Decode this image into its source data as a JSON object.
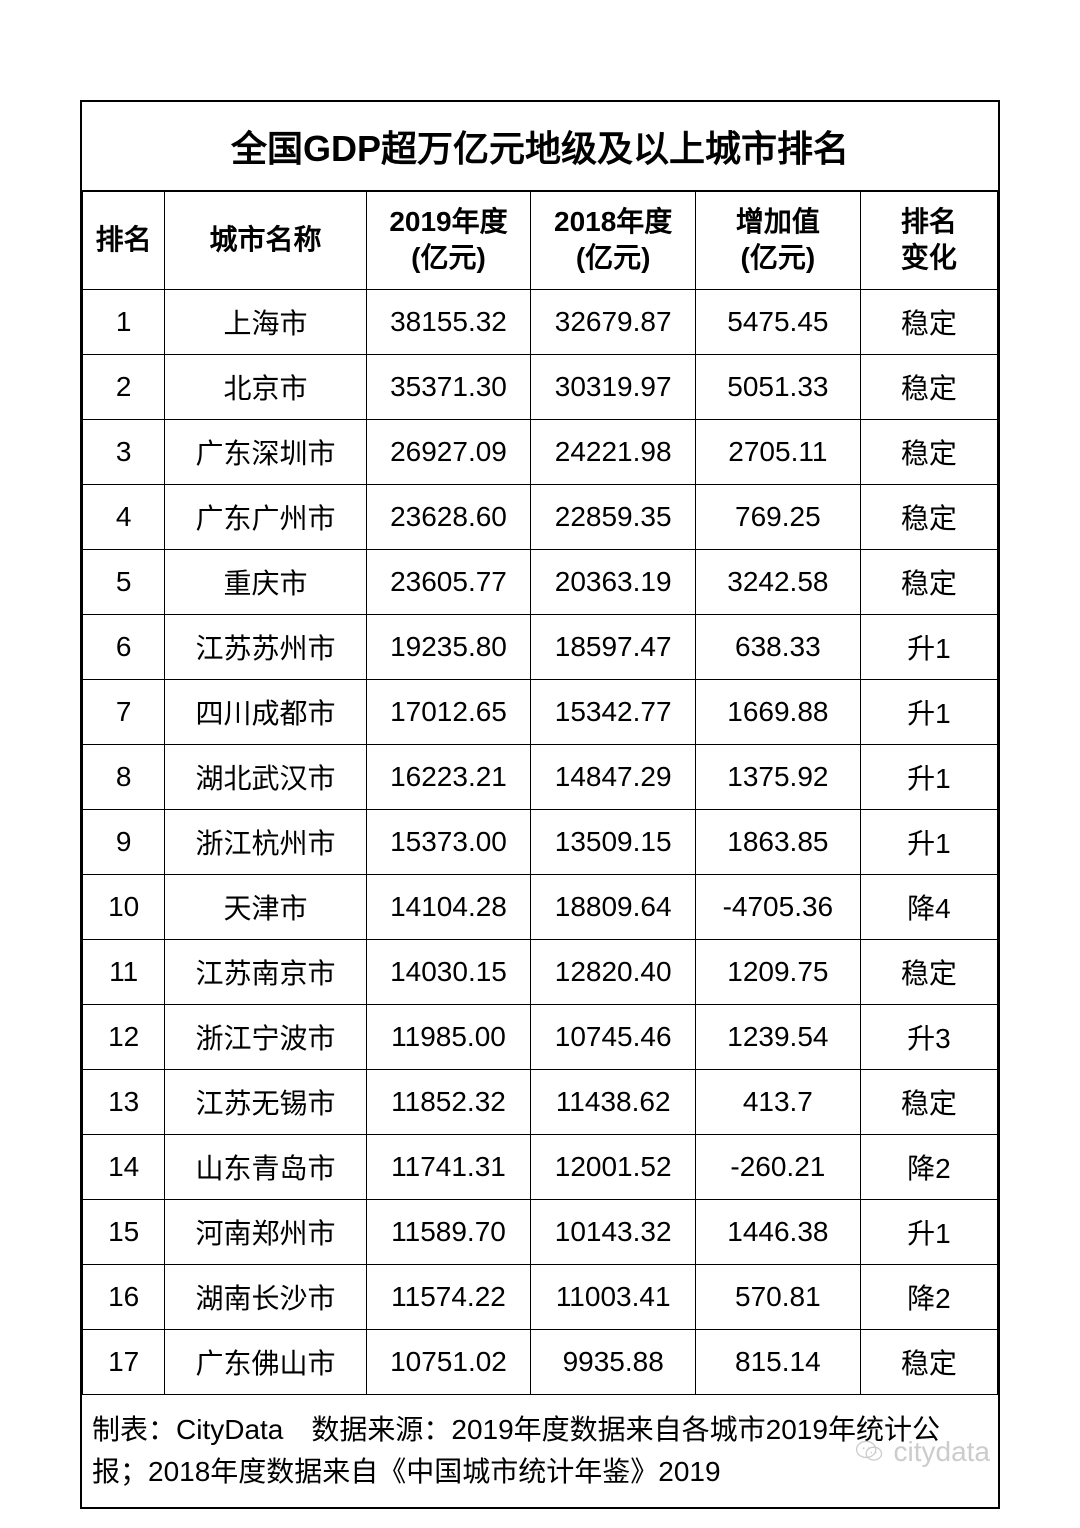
{
  "table": {
    "title": "全国GDP超万亿元地级及以上城市排名",
    "columns": {
      "rank": "排名",
      "city": "城市名称",
      "y2019_l1": "2019年度",
      "y2019_l2": "(亿元)",
      "y2018_l1": "2018年度",
      "y2018_l2": "(亿元)",
      "increase_l1": "增加值",
      "increase_l2": "(亿元)",
      "change_l1": "排名",
      "change_l2": "变化"
    },
    "rows": [
      {
        "rank": "1",
        "city": "上海市",
        "y2019": "38155.32",
        "y2018": "32679.87",
        "increase": "5475.45",
        "change": "稳定"
      },
      {
        "rank": "2",
        "city": "北京市",
        "y2019": "35371.30",
        "y2018": "30319.97",
        "increase": "5051.33",
        "change": "稳定"
      },
      {
        "rank": "3",
        "city": "广东深圳市",
        "y2019": "26927.09",
        "y2018": "24221.98",
        "increase": "2705.11",
        "change": "稳定"
      },
      {
        "rank": "4",
        "city": "广东广州市",
        "y2019": "23628.60",
        "y2018": "22859.35",
        "increase": "769.25",
        "change": "稳定"
      },
      {
        "rank": "5",
        "city": "重庆市",
        "y2019": "23605.77",
        "y2018": "20363.19",
        "increase": "3242.58",
        "change": "稳定"
      },
      {
        "rank": "6",
        "city": "江苏苏州市",
        "y2019": "19235.80",
        "y2018": "18597.47",
        "increase": "638.33",
        "change": "升1"
      },
      {
        "rank": "7",
        "city": "四川成都市",
        "y2019": "17012.65",
        "y2018": "15342.77",
        "increase": "1669.88",
        "change": "升1"
      },
      {
        "rank": "8",
        "city": "湖北武汉市",
        "y2019": "16223.21",
        "y2018": "14847.29",
        "increase": "1375.92",
        "change": "升1"
      },
      {
        "rank": "9",
        "city": "浙江杭州市",
        "y2019": "15373.00",
        "y2018": "13509.15",
        "increase": "1863.85",
        "change": "升1"
      },
      {
        "rank": "10",
        "city": "天津市",
        "y2019": "14104.28",
        "y2018": "18809.64",
        "increase": "-4705.36",
        "change": "降4"
      },
      {
        "rank": "11",
        "city": "江苏南京市",
        "y2019": "14030.15",
        "y2018": "12820.40",
        "increase": "1209.75",
        "change": "稳定"
      },
      {
        "rank": "12",
        "city": "浙江宁波市",
        "y2019": "11985.00",
        "y2018": "10745.46",
        "increase": "1239.54",
        "change": "升3"
      },
      {
        "rank": "13",
        "city": "江苏无锡市",
        "y2019": "11852.32",
        "y2018": "11438.62",
        "increase": "413.7",
        "change": "稳定"
      },
      {
        "rank": "14",
        "city": "山东青岛市",
        "y2019": "11741.31",
        "y2018": "12001.52",
        "increase": "-260.21",
        "change": "降2"
      },
      {
        "rank": "15",
        "city": "河南郑州市",
        "y2019": "11589.70",
        "y2018": "10143.32",
        "increase": "1446.38",
        "change": "升1"
      },
      {
        "rank": "16",
        "city": "湖南长沙市",
        "y2019": "11574.22",
        "y2018": "11003.41",
        "increase": "570.81",
        "change": "降2"
      },
      {
        "rank": "17",
        "city": "广东佛山市",
        "y2019": "10751.02",
        "y2018": "9935.88",
        "increase": "815.14",
        "change": "稳定"
      }
    ],
    "footer_note": "制表：CityData　数据来源：2019年度数据来自各城市2019年统计公报；2018年度数据来自《中国城市统计年鉴》2019",
    "watermark_text": "citydata",
    "styling": {
      "border_color": "#000000",
      "background_color": "#ffffff",
      "text_color": "#000000",
      "title_fontsize": 36,
      "header_fontsize": 28,
      "cell_fontsize": 28,
      "watermark_color": "#cccccc"
    }
  }
}
